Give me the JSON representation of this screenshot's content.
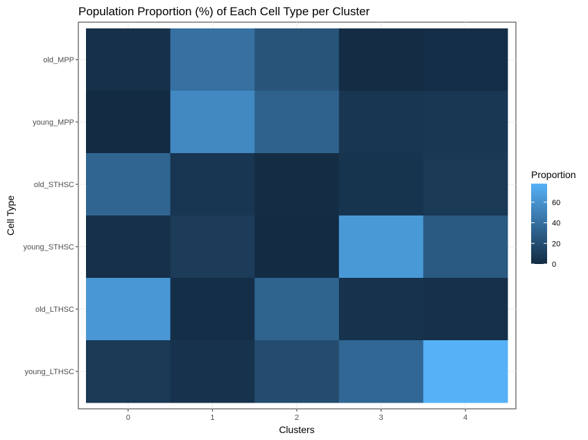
{
  "chart_data": {
    "type": "heatmap",
    "title": "Population Proportion (%) of Each Cell Type per Cluster",
    "xlabel": "Clusters",
    "ylabel": "Cell Type",
    "x_categories": [
      "0",
      "1",
      "2",
      "3",
      "4"
    ],
    "y_categories": [
      "old_MPP",
      "young_MPP",
      "old_STHSC",
      "young_STHSC",
      "old_LTHSC",
      "young_LTHSC"
    ],
    "values": [
      [
        3,
        41,
        24,
        1,
        2
      ],
      [
        0,
        55,
        32,
        6,
        7
      ],
      [
        34,
        6,
        1,
        5,
        8
      ],
      [
        3,
        10,
        0,
        64,
        27
      ],
      [
        63,
        2,
        33,
        4,
        3
      ],
      [
        8,
        4,
        19,
        35,
        78
      ]
    ],
    "legend": {
      "title": "Proportion",
      "breaks": [
        0,
        20,
        40,
        60
      ],
      "range": [
        0,
        78
      ],
      "colors": {
        "low": "#132B43",
        "high": "#56B1F7"
      },
      "position": "right"
    },
    "background": "#ffffff",
    "grid": true
  }
}
